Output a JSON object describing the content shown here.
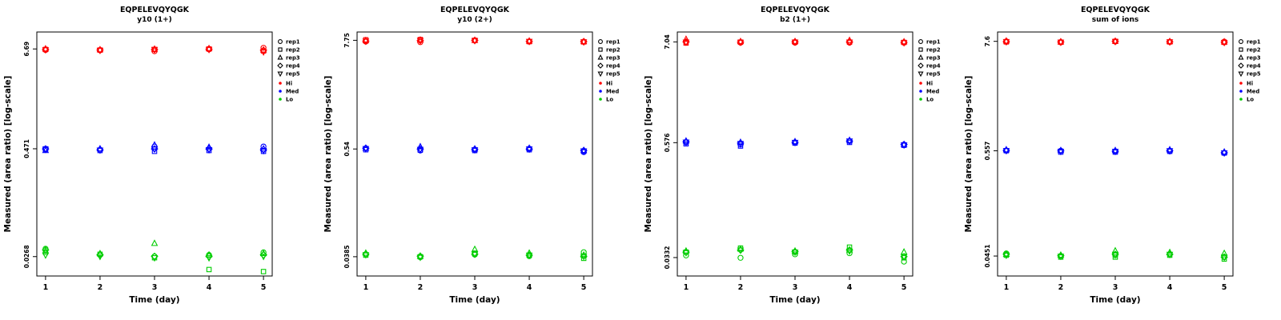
{
  "figure": {
    "background": "#ffffff",
    "peptide": "EQPELEVQYQGK"
  },
  "legend": {
    "reps": [
      {
        "label": "rep1",
        "symbol": "circle"
      },
      {
        "label": "rep2",
        "symbol": "square"
      },
      {
        "label": "rep3",
        "symbol": "triangle"
      },
      {
        "label": "rep4",
        "symbol": "diamond"
      },
      {
        "label": "rep5",
        "symbol": "triangle-down"
      }
    ],
    "levels": [
      {
        "label": "Hi",
        "color": "#FF0000"
      },
      {
        "label": "Med",
        "color": "#0000FF"
      },
      {
        "label": "Lo",
        "color": "#00CD00"
      }
    ]
  },
  "chart_data": [
    {
      "type": "scatter",
      "title": "EQPELEVQYQGK",
      "subtitle": "y10 (1+)",
      "xlabel": "Time (day)",
      "ylabel": "Measured (area ratio) [log-scale]",
      "x_ticks": [
        1,
        2,
        3,
        4,
        5
      ],
      "y_scale": "log",
      "ylim": [
        0.016,
        10.5
      ],
      "y_ticks": [
        {
          "value": 6.69,
          "label": "6.69"
        },
        {
          "value": 0.471,
          "label": "0.471"
        },
        {
          "value": 0.0268,
          "label": "0.0268"
        }
      ],
      "series": [
        {
          "level": "Hi",
          "rep_values": [
            [
              6.5,
              6.45,
              6.3,
              6.6,
              6.9
            ],
            [
              6.6,
              6.5,
              6.6,
              6.7,
              6.35
            ],
            [
              6.7,
              6.55,
              6.65,
              6.75,
              6.5
            ],
            [
              6.62,
              6.5,
              6.6,
              6.65,
              6.45
            ],
            [
              6.55,
              6.45,
              6.6,
              6.6,
              6.2
            ]
          ]
        },
        {
          "level": "Med",
          "rep_values": [
            [
              0.46,
              0.46,
              0.5,
              0.47,
              0.5
            ],
            [
              0.47,
              0.45,
              0.44,
              0.45,
              0.44
            ],
            [
              0.45,
              0.47,
              0.52,
              0.49,
              0.47
            ],
            [
              0.47,
              0.46,
              0.47,
              0.47,
              0.46
            ],
            [
              0.465,
              0.455,
              0.47,
              0.46,
              0.45
            ]
          ]
        },
        {
          "level": "Lo",
          "rep_values": [
            [
              0.033,
              0.028,
              0.027,
              0.028,
              0.03
            ],
            [
              0.03,
              0.0285,
              0.026,
              0.019,
              0.018
            ],
            [
              0.031,
              0.029,
              0.038,
              0.028,
              0.029
            ],
            [
              0.032,
              0.028,
              0.027,
              0.027,
              0.028
            ],
            [
              0.028,
              0.027,
              0.026,
              0.026,
              0.027
            ]
          ]
        }
      ]
    },
    {
      "type": "scatter",
      "title": "EQPELEVQYQGK",
      "subtitle": "y10 (2+)",
      "xlabel": "Time (day)",
      "ylabel": "Measured (area ratio) [log-scale]",
      "x_ticks": [
        1,
        2,
        3,
        4,
        5
      ],
      "y_scale": "log",
      "ylim": [
        0.024,
        9.5
      ],
      "y_ticks": [
        {
          "value": 7.75,
          "label": "7.75"
        },
        {
          "value": 0.54,
          "label": "0.54"
        },
        {
          "value": 0.0385,
          "label": "0.0385"
        }
      ],
      "series": [
        {
          "level": "Hi",
          "rep_values": [
            [
              7.5,
              7.4,
              7.7,
              7.5,
              7.5
            ],
            [
              7.85,
              7.9,
              7.75,
              7.5,
              7.45
            ],
            [
              7.7,
              7.8,
              7.72,
              7.6,
              7.5
            ],
            [
              7.6,
              7.7,
              7.75,
              7.55,
              7.5
            ],
            [
              7.6,
              7.72,
              7.7,
              7.55,
              7.45
            ]
          ]
        },
        {
          "level": "Med",
          "rep_values": [
            [
              0.55,
              0.52,
              0.53,
              0.545,
              0.5
            ],
            [
              0.53,
              0.525,
              0.52,
              0.53,
              0.51
            ],
            [
              0.55,
              0.57,
              0.54,
              0.55,
              0.52
            ],
            [
              0.55,
              0.54,
              0.535,
              0.54,
              0.52
            ],
            [
              0.545,
              0.535,
              0.53,
              0.54,
              0.515
            ]
          ]
        },
        {
          "level": "Lo",
          "rep_values": [
            [
              0.041,
              0.038,
              0.0405,
              0.039,
              0.043
            ],
            [
              0.04,
              0.0385,
              0.042,
              0.04,
              0.037
            ],
            [
              0.042,
              0.039,
              0.046,
              0.042,
              0.04
            ],
            [
              0.041,
              0.039,
              0.041,
              0.04,
              0.039
            ],
            [
              0.0405,
              0.038,
              0.041,
              0.04,
              0.039
            ]
          ]
        }
      ]
    },
    {
      "type": "scatter",
      "title": "EQPELEVQYQGK",
      "subtitle": "b2 (1+)",
      "xlabel": "Time (day)",
      "ylabel": "Measured (area ratio) [log-scale]",
      "x_ticks": [
        1,
        2,
        3,
        4,
        5
      ],
      "y_scale": "log",
      "ylim": [
        0.021,
        9.0
      ],
      "y_ticks": [
        {
          "value": 7.04,
          "label": "7.04"
        },
        {
          "value": 0.576,
          "label": "0.576"
        },
        {
          "value": 0.0332,
          "label": "0.0332"
        }
      ],
      "series": [
        {
          "level": "Hi",
          "rep_values": [
            [
              7.0,
              6.9,
              6.9,
              6.9,
              6.9
            ],
            [
              6.85,
              7.0,
              7.0,
              7.0,
              6.95
            ],
            [
              7.5,
              7.1,
              7.1,
              7.3,
              7.05
            ],
            [
              7.05,
              7.0,
              7.05,
              7.05,
              6.95
            ],
            [
              7.0,
              6.98,
              7.0,
              7.0,
              6.9
            ]
          ]
        },
        {
          "level": "Med",
          "rep_values": [
            [
              0.58,
              0.55,
              0.58,
              0.6,
              0.55
            ],
            [
              0.56,
              0.53,
              0.57,
              0.58,
              0.54
            ],
            [
              0.6,
              0.58,
              0.59,
              0.61,
              0.55
            ],
            [
              0.59,
              0.57,
              0.58,
              0.6,
              0.55
            ],
            [
              0.585,
              0.565,
              0.58,
              0.6,
              0.545
            ]
          ]
        },
        {
          "level": "Lo",
          "rep_values": [
            [
              0.035,
              0.033,
              0.036,
              0.037,
              0.03
            ],
            [
              0.038,
              0.042,
              0.038,
              0.043,
              0.033
            ],
            [
              0.039,
              0.041,
              0.039,
              0.04,
              0.038
            ],
            [
              0.038,
              0.04,
              0.0385,
              0.04,
              0.034
            ],
            [
              0.0375,
              0.04,
              0.038,
              0.039,
              0.034
            ]
          ]
        }
      ]
    },
    {
      "type": "scatter",
      "title": "EQPELEVQYQGK",
      "subtitle": "sum of ions",
      "xlabel": "Time (day)",
      "ylabel": "Measured (area ratio) [log-scale]",
      "x_ticks": [
        1,
        2,
        3,
        4,
        5
      ],
      "y_scale": "log",
      "ylim": [
        0.028,
        9.5
      ],
      "y_ticks": [
        {
          "value": 7.6,
          "label": "7.6"
        },
        {
          "value": 0.557,
          "label": "0.557"
        },
        {
          "value": 0.0451,
          "label": "0.0451"
        }
      ],
      "series": [
        {
          "level": "Hi",
          "rep_values": [
            [
              7.6,
              7.4,
              7.55,
              7.5,
              7.55
            ],
            [
              7.5,
              7.45,
              7.6,
              7.5,
              7.42
            ],
            [
              7.65,
              7.5,
              7.62,
              7.55,
              7.5
            ],
            [
              7.55,
              7.5,
              7.6,
              7.52,
              7.45
            ],
            [
              7.55,
              7.45,
              7.58,
              7.5,
              7.4
            ]
          ]
        },
        {
          "level": "Med",
          "rep_values": [
            [
              0.56,
              0.558,
              0.55,
              0.55,
              0.53
            ],
            [
              0.558,
              0.54,
              0.54,
              0.55,
              0.528
            ],
            [
              0.57,
              0.56,
              0.56,
              0.57,
              0.54
            ],
            [
              0.562,
              0.556,
              0.552,
              0.56,
              0.532
            ],
            [
              0.56,
              0.55,
              0.55,
              0.558,
              0.53
            ]
          ]
        },
        {
          "level": "Lo",
          "rep_values": [
            [
              0.048,
              0.045,
              0.046,
              0.047,
              0.044
            ],
            [
              0.046,
              0.044,
              0.044,
              0.046,
              0.042
            ],
            [
              0.047,
              0.046,
              0.051,
              0.049,
              0.048
            ],
            [
              0.047,
              0.0455,
              0.047,
              0.047,
              0.044
            ],
            [
              0.046,
              0.045,
              0.047,
              0.047,
              0.044
            ]
          ]
        }
      ]
    }
  ]
}
